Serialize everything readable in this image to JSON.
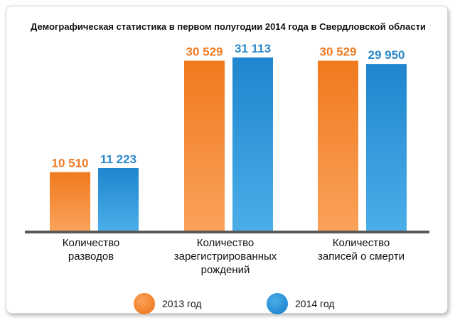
{
  "chart_data": {
    "type": "bar",
    "title": "Демографическая статистика в первом полугодии 2014 года в Свердловской области",
    "categories": [
      [
        "Количество",
        "разводов"
      ],
      [
        "Количество",
        "зарегистрированных",
        "рождений"
      ],
      [
        "Количество",
        "записей о смерти"
      ]
    ],
    "series": [
      {
        "name": "2013 год",
        "values": [
          10510,
          30529,
          30529
        ],
        "labels": [
          "10 510",
          "30 529",
          "30 529"
        ],
        "color": "#f07a1e",
        "color_light": "#fba25a",
        "label_color": "#ee7a22"
      },
      {
        "name": "2014 год",
        "values": [
          11223,
          31113,
          29950
        ],
        "labels": [
          "11 223",
          "31 113",
          "29 950"
        ],
        "color": "#1f86cf",
        "color_light": "#4aaee8",
        "label_color": "#2a88c9"
      }
    ],
    "ylim": [
      0,
      31113
    ],
    "grid": false,
    "legend": "bottom-center",
    "axis_color": "#595959"
  }
}
